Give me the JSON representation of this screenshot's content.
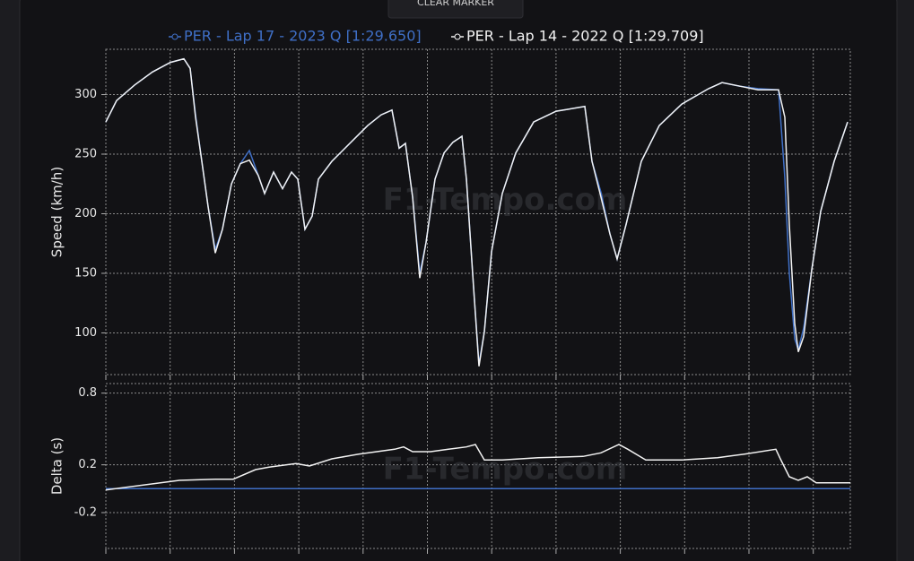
{
  "button": "CLEAR MARKER",
  "chart_data": [
    {
      "type": "line",
      "ylabel": "Speed (km/h)",
      "watermark": "F1-Tempo.com",
      "grid": true,
      "legend": "top",
      "xlim": [
        0,
        830
      ],
      "ylim": [
        65,
        338
      ],
      "yticks": [
        100,
        150,
        200,
        250,
        300
      ],
      "x": [
        0,
        12,
        32,
        52,
        72,
        87,
        94,
        100,
        107,
        114,
        122,
        130,
        140,
        150,
        160,
        170,
        177,
        187,
        197,
        207,
        214,
        222,
        230,
        237,
        252,
        272,
        292,
        307,
        319,
        327,
        334,
        342,
        350,
        357,
        367,
        377,
        387,
        397,
        402,
        410,
        416,
        422,
        430,
        442,
        457,
        477,
        502,
        534,
        542,
        552,
        562,
        570,
        580,
        597,
        617,
        642,
        672,
        687,
        707,
        727,
        750,
        757,
        762,
        768,
        772,
        778,
        787,
        797,
        812,
        827
      ],
      "series": [
        {
          "name": "PER - Lap 17 - 2023 Q [1:29.650]",
          "color": "#3f6fc6",
          "values": [
            277,
            295,
            308,
            319,
            327,
            330,
            322,
            283,
            244,
            206,
            170,
            187,
            225,
            242,
            253,
            232,
            217,
            235,
            221,
            235,
            229,
            187,
            198,
            229,
            244,
            259,
            274,
            283,
            287,
            255,
            259,
            214,
            150,
            176,
            229,
            251,
            260,
            265,
            229,
            138,
            74,
            101,
            168,
            217,
            251,
            277,
            286,
            290,
            244,
            218,
            183,
            162,
            191,
            244,
            274,
            292,
            305,
            310,
            307,
            305,
            304,
            230,
            150,
            95,
            86,
            104,
            153,
            202,
            244,
            277
          ]
        },
        {
          "name": "PER - Lap 14 - 2022 Q [1:29.709]",
          "color": "#f2f2f2",
          "values": [
            277,
            295,
            308,
            319,
            327,
            330,
            322,
            281,
            244,
            206,
            167,
            187,
            225,
            242,
            245,
            232,
            217,
            235,
            221,
            235,
            229,
            187,
            198,
            229,
            244,
            259,
            274,
            283,
            287,
            255,
            259,
            214,
            146,
            176,
            229,
            251,
            260,
            265,
            229,
            138,
            72,
            101,
            168,
            217,
            251,
            277,
            286,
            290,
            244,
            214,
            183,
            162,
            191,
            244,
            274,
            292,
            305,
            310,
            307,
            304,
            304,
            281,
            191,
            108,
            84,
            97,
            153,
            202,
            244,
            277
          ]
        }
      ]
    },
    {
      "type": "line",
      "ylabel": "Delta (s)",
      "watermark": "F1-Tempo.com",
      "grid": true,
      "xlim": [
        0,
        830
      ],
      "ylim": [
        -0.5,
        0.88
      ],
      "yticks": [
        -0.2,
        0.2,
        0.8
      ],
      "series": [
        {
          "color": "#3f6fc6",
          "x": [
            0,
            830
          ],
          "values": [
            0,
            0
          ]
        },
        {
          "color": "#f2f2f2",
          "x": [
            0,
            82,
            122,
            142,
            167,
            182,
            212,
            227,
            252,
            282,
            322,
            332,
            342,
            362,
            382,
            402,
            412,
            422,
            442,
            482,
            532,
            552,
            572,
            582,
            602,
            642,
            682,
            712,
            747,
            752,
            762,
            772,
            782,
            792,
            812,
            830
          ],
          "values": [
            -0.01,
            0.07,
            0.08,
            0.08,
            0.16,
            0.18,
            0.21,
            0.19,
            0.25,
            0.29,
            0.33,
            0.35,
            0.31,
            0.31,
            0.33,
            0.35,
            0.37,
            0.24,
            0.24,
            0.26,
            0.27,
            0.3,
            0.37,
            0.33,
            0.24,
            0.24,
            0.26,
            0.29,
            0.33,
            0.25,
            0.1,
            0.07,
            0.1,
            0.05,
            0.05,
            0.05
          ]
        }
      ]
    }
  ]
}
